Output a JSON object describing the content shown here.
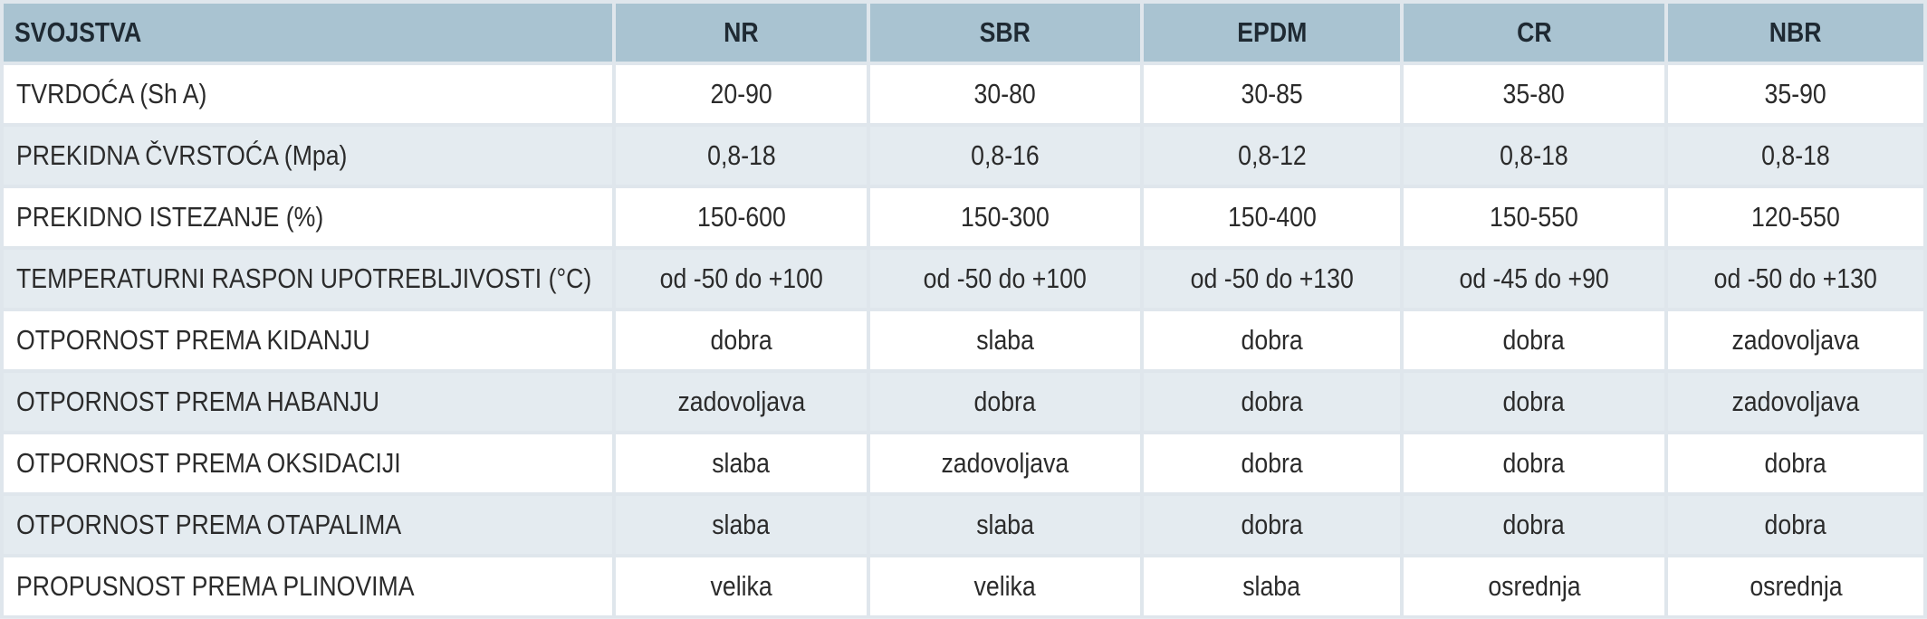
{
  "table": {
    "headers": [
      "SVOJSTVA",
      "NR",
      "SBR",
      "EPDM",
      "CR",
      "NBR"
    ],
    "rows": [
      [
        "TVRDOĆA (Sh A)",
        "20-90",
        "30-80",
        "30-85",
        "35-80",
        "35-90"
      ],
      [
        "PREKIDNA ČVRSTOĆA (Mpa)",
        "0,8-18",
        "0,8-16",
        "0,8-12",
        "0,8-18",
        "0,8-18"
      ],
      [
        "PREKIDNO ISTEZANJE (%)",
        "150-600",
        "150-300",
        "150-400",
        "150-550",
        "120-550"
      ],
      [
        "TEMPERATURNI RASPON UPOTREBLJIVOSTI (°C)",
        "od -50 do +100",
        "od -50 do +100",
        "od -50 do +130",
        "od -45 do +90",
        "od -50 do +130"
      ],
      [
        "OTPORNOST PREMA KIDANJU",
        "dobra",
        "slaba",
        "dobra",
        "dobra",
        "zadovoljava"
      ],
      [
        "OTPORNOST PREMA HABANJU",
        "zadovoljava",
        "dobra",
        "dobra",
        "dobra",
        "zadovoljava"
      ],
      [
        "OTPORNOST PREMA OKSIDACIJI",
        "slaba",
        "zadovoljava",
        "dobra",
        "dobra",
        "dobra"
      ],
      [
        "OTPORNOST PREMA OTAPALIMA",
        "slaba",
        "slaba",
        "dobra",
        "dobra",
        "dobra"
      ],
      [
        "PROPUSNOST PREMA PLINOVIMA",
        "velika",
        "velika",
        "slaba",
        "osrednja",
        "osrednja"
      ]
    ]
  },
  "colors": {
    "header_bg": "#a9c3d1",
    "row_odd_bg": "#ffffff",
    "row_even_bg": "#e4ebf0",
    "grid": "#dfe6ec"
  }
}
